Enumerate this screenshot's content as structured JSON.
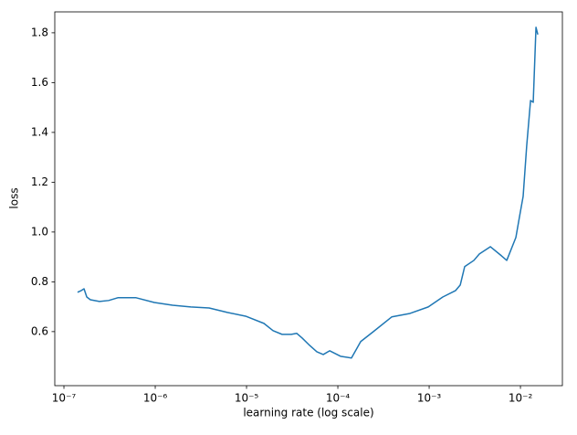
{
  "chart_data": {
    "type": "line",
    "xlabel": "learning rate (log scale)",
    "ylabel": "loss",
    "xscale": "log",
    "xlim": [
      7.94e-08,
      0.0288
    ],
    "ylim": [
      0.383,
      1.884
    ],
    "xticks": [
      {
        "value": 1e-07,
        "label": "10⁻⁷"
      },
      {
        "value": 1e-06,
        "label": "10⁻⁶"
      },
      {
        "value": 1e-05,
        "label": "10⁻⁵"
      },
      {
        "value": 0.0001,
        "label": "10⁻⁴"
      },
      {
        "value": 0.001,
        "label": "10⁻³"
      },
      {
        "value": 0.01,
        "label": "10⁻²"
      }
    ],
    "yticks": [
      0.6,
      0.8,
      {
        "value": 1,
        "label": "1.0"
      },
      1.2,
      1.4,
      1.6,
      1.8
    ],
    "grid": false,
    "series": [
      {
        "color": "#1f77b4",
        "x": [
          1.41e-07,
          1.55e-07,
          1.66e-07,
          1.78e-07,
          1.95e-07,
          2.45e-07,
          3.09e-07,
          3.89e-07,
          6.17e-07,
          9.77e-07,
          1.55e-06,
          2.45e-06,
          3.89e-06,
          6.17e-06,
          9.77e-06,
          1.55e-05,
          1.95e-05,
          2.45e-05,
          3.09e-05,
          3.55e-05,
          4.07e-05,
          4.9e-05,
          5.89e-05,
          6.92e-05,
          8.13e-05,
          0.000107,
          0.000141,
          0.000178,
          0.000245,
          0.000389,
          0.000617,
          0.000977,
          0.00141,
          0.00195,
          0.00219,
          0.00245,
          0.00309,
          0.00355,
          0.00468,
          0.00617,
          0.00708,
          0.00891,
          0.00977,
          0.0107,
          0.0117,
          0.0129,
          0.0138,
          0.0148,
          0.0155
        ],
        "values": [
          0.758,
          0.765,
          0.772,
          0.739,
          0.728,
          0.721,
          0.725,
          0.736,
          0.736,
          0.717,
          0.706,
          0.699,
          0.695,
          0.677,
          0.662,
          0.633,
          0.604,
          0.589,
          0.589,
          0.593,
          0.574,
          0.545,
          0.519,
          0.508,
          0.523,
          0.501,
          0.494,
          0.56,
          0.6,
          0.659,
          0.673,
          0.699,
          0.739,
          0.765,
          0.787,
          0.861,
          0.886,
          0.912,
          0.941,
          0.905,
          0.886,
          0.978,
          1.062,
          1.143,
          1.345,
          1.528,
          1.521,
          1.822,
          1.793
        ]
      }
    ]
  }
}
